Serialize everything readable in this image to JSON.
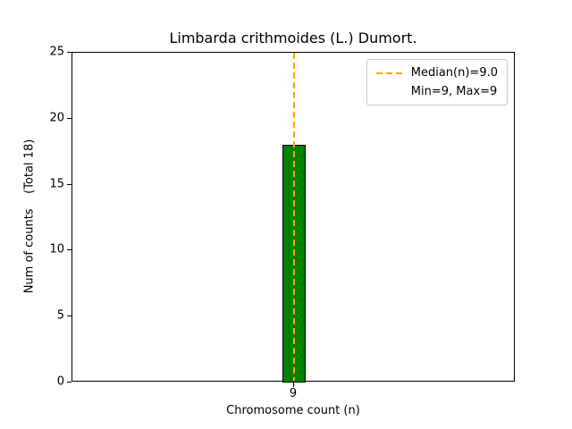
{
  "chart_data": {
    "type": "bar",
    "title": "Limbarda crithmoides (L.) Dumort.",
    "xlabel": "Chromosome count (n)",
    "ylabel": "Num of counts    (Total 18)",
    "categories": [
      9
    ],
    "values": [
      18
    ],
    "total_counts": 18,
    "ylim": [
      0,
      25
    ],
    "yticks": [
      0,
      5,
      10,
      15,
      20,
      25
    ],
    "grid": false,
    "bar_color": "#008000",
    "bar_edge_color": "#000000",
    "median": {
      "value": 9.0,
      "line_color": "#ffa500",
      "line_style": "dashed"
    },
    "min": 9,
    "max": 9,
    "legend": {
      "position": "upper-right",
      "entries": [
        {
          "label": "Median(n)=9.0",
          "handle": "orange-dashed-line"
        },
        {
          "label": "Min=9, Max=9",
          "handle": "none"
        }
      ]
    }
  }
}
